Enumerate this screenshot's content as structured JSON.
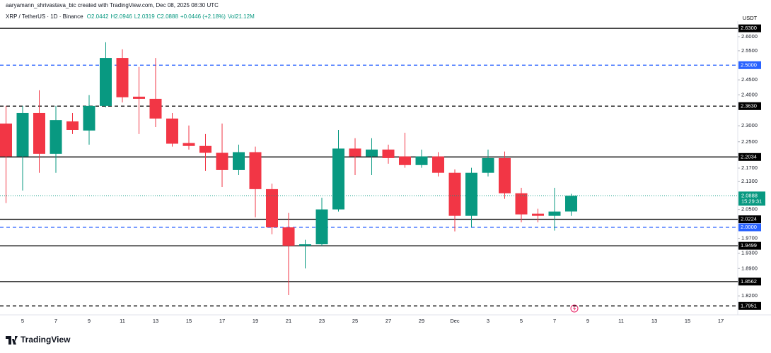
{
  "header": {
    "credit": "aaryamann_shrivastava_bic created with TradingView.com, Dec 08, 2025 08:30 UTC",
    "symbol": "XRP / TetherUS · 1D · Binance",
    "ohlc": [
      "O2.0442",
      "H2.0946",
      "L2.0319",
      "C2.0888",
      "+0.0446 (+2.18%)",
      "Vol21.12M"
    ]
  },
  "footer": {
    "brand": "TradingView"
  },
  "chart_data": {
    "type": "candlestick",
    "log_scale": true,
    "grid": false,
    "y_unit": "USDT",
    "up_color": "#089981",
    "down_color": "#f23645",
    "countdown": "15:29:31",
    "categories": [
      null,
      "5",
      null,
      "7",
      null,
      "9",
      null,
      "11",
      null,
      "13",
      null,
      "15",
      null,
      "17",
      null,
      "19",
      null,
      "21",
      null,
      "23",
      null,
      "25",
      null,
      "27",
      null,
      "29",
      null,
      "Dec",
      null,
      "3",
      null,
      "5",
      null,
      "7",
      null,
      "9",
      null,
      "11",
      null,
      "13",
      null,
      "15",
      null,
      "17"
    ],
    "open": [
      2.307,
      2.205,
      2.341,
      2.213,
      2.314,
      2.285,
      2.364,
      2.525,
      2.394,
      2.387,
      2.323,
      2.246,
      2.237,
      2.216,
      2.164,
      2.218,
      2.108,
      2.0,
      1.95,
      1.954,
      2.05,
      2.229,
      2.205,
      2.226,
      2.205,
      2.179,
      2.205,
      2.156,
      2.032,
      2.156,
      2.2,
      2.096,
      2.038,
      2.032,
      2.0442,
      null,
      null,
      null,
      null,
      null,
      null,
      null,
      null,
      null
    ],
    "high": [
      2.364,
      2.364,
      2.415,
      2.364,
      2.341,
      2.399,
      2.58,
      2.555,
      2.494,
      2.525,
      2.341,
      2.301,
      2.274,
      2.307,
      2.241,
      2.235,
      2.124,
      2.04,
      1.966,
      2.083,
      2.287,
      2.261,
      2.261,
      2.241,
      2.278,
      2.226,
      2.218,
      2.166,
      2.171,
      2.226,
      2.22,
      2.112,
      2.052,
      2.112,
      2.0946,
      null,
      null,
      null,
      null,
      null,
      null,
      null,
      null,
      null
    ],
    "low": [
      2.068,
      2.104,
      2.156,
      2.156,
      2.274,
      2.241,
      2.359,
      2.375,
      2.274,
      2.296,
      2.235,
      2.226,
      2.162,
      2.114,
      2.149,
      2.028,
      1.981,
      1.822,
      1.89,
      1.95,
      2.044,
      2.149,
      2.149,
      2.183,
      2.171,
      2.171,
      2.145,
      1.989,
      2.0,
      2.145,
      2.08,
      2.014,
      2.014,
      1.991,
      2.0319,
      null,
      null,
      null,
      null,
      null,
      null,
      null,
      null,
      null
    ],
    "close": [
      2.205,
      2.341,
      2.213,
      2.318,
      2.287,
      2.364,
      2.525,
      2.392,
      2.387,
      2.323,
      2.244,
      2.237,
      2.216,
      2.164,
      2.218,
      2.108,
      2.0,
      1.95,
      1.954,
      2.05,
      2.229,
      2.205,
      2.226,
      2.2,
      2.179,
      2.205,
      2.156,
      2.032,
      2.156,
      2.2,
      2.096,
      2.036,
      2.032,
      2.044,
      2.0888,
      null,
      null,
      null,
      null,
      null,
      null,
      null,
      null,
      null
    ],
    "ylim": [
      1.78,
      2.656
    ],
    "yticks": [
      {
        "value": 2.6,
        "label": "2.6000"
      },
      {
        "value": 2.55,
        "label": "2.5500"
      },
      {
        "value": 2.45,
        "label": "2.4500"
      },
      {
        "value": 2.4,
        "label": "2.4000"
      },
      {
        "value": 2.3,
        "label": "2.3000"
      },
      {
        "value": 2.25,
        "label": "2.2500"
      },
      {
        "value": 2.17,
        "label": "2.1700"
      },
      {
        "value": 2.13,
        "label": "2.1300"
      },
      {
        "value": 2.05,
        "label": "2.0500"
      },
      {
        "value": 1.97,
        "label": "1.9700"
      },
      {
        "value": 1.93,
        "label": "1.9300"
      },
      {
        "value": 1.89,
        "label": "1.8900"
      },
      {
        "value": 1.82,
        "label": "1.8200"
      }
    ],
    "levels": [
      {
        "price": {
          "value": 2.63,
          "label": "2.6300"
        },
        "line": "solid",
        "color": "#000000"
      },
      {
        "price": {
          "value": 2.5,
          "label": "2.5000"
        },
        "line": "dashed",
        "color": "#2962ff"
      },
      {
        "price": {
          "value": 2.363,
          "label": "2.3630"
        },
        "line": "dashed",
        "color": "#000000"
      },
      {
        "price": 2.2034,
        "line": "solid",
        "color": "#000000"
      },
      {
        "price": 2.0224,
        "line": "solid",
        "color": "#000000"
      },
      {
        "price": {
          "value": 2.0,
          "label": "2.0000"
        },
        "line": "dashed",
        "color": "#2962ff"
      },
      {
        "price": 1.9499,
        "line": "solid",
        "color": "#000000"
      },
      {
        "price": 1.8562,
        "line": "solid",
        "color": "#000000"
      },
      {
        "price": 1.7951,
        "line": "dashed",
        "color": "#000000"
      }
    ]
  }
}
